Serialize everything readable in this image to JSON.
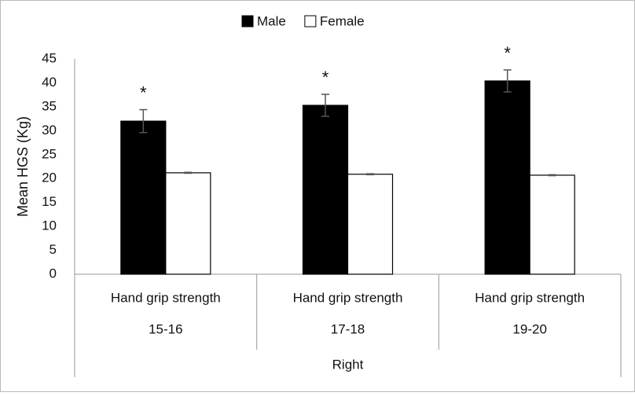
{
  "chart_data": {
    "type": "bar",
    "ylabel": "Mean HGS (Kg)",
    "category_titles": [
      "Hand grip strength",
      "Hand grip strength",
      "Hand grip strength"
    ],
    "categories": [
      "15-16",
      "17-18",
      "19-20"
    ],
    "group_label": "Right",
    "series": [
      {
        "name": "Male",
        "color": "#000000",
        "values": [
          32.0,
          35.3,
          40.4
        ],
        "errors": [
          2.4,
          2.3,
          2.3
        ]
      },
      {
        "name": "Female",
        "color": "#ffffff",
        "values": [
          21.2,
          20.9,
          20.7
        ],
        "errors": [
          0.1,
          0.1,
          0.1
        ]
      }
    ],
    "significance": [
      "*",
      "*",
      "*"
    ],
    "ylim": [
      0,
      45
    ],
    "yticks": [
      0,
      5,
      10,
      15,
      20,
      25,
      30,
      35,
      40,
      45
    ],
    "legend": "top",
    "grid": false
  }
}
